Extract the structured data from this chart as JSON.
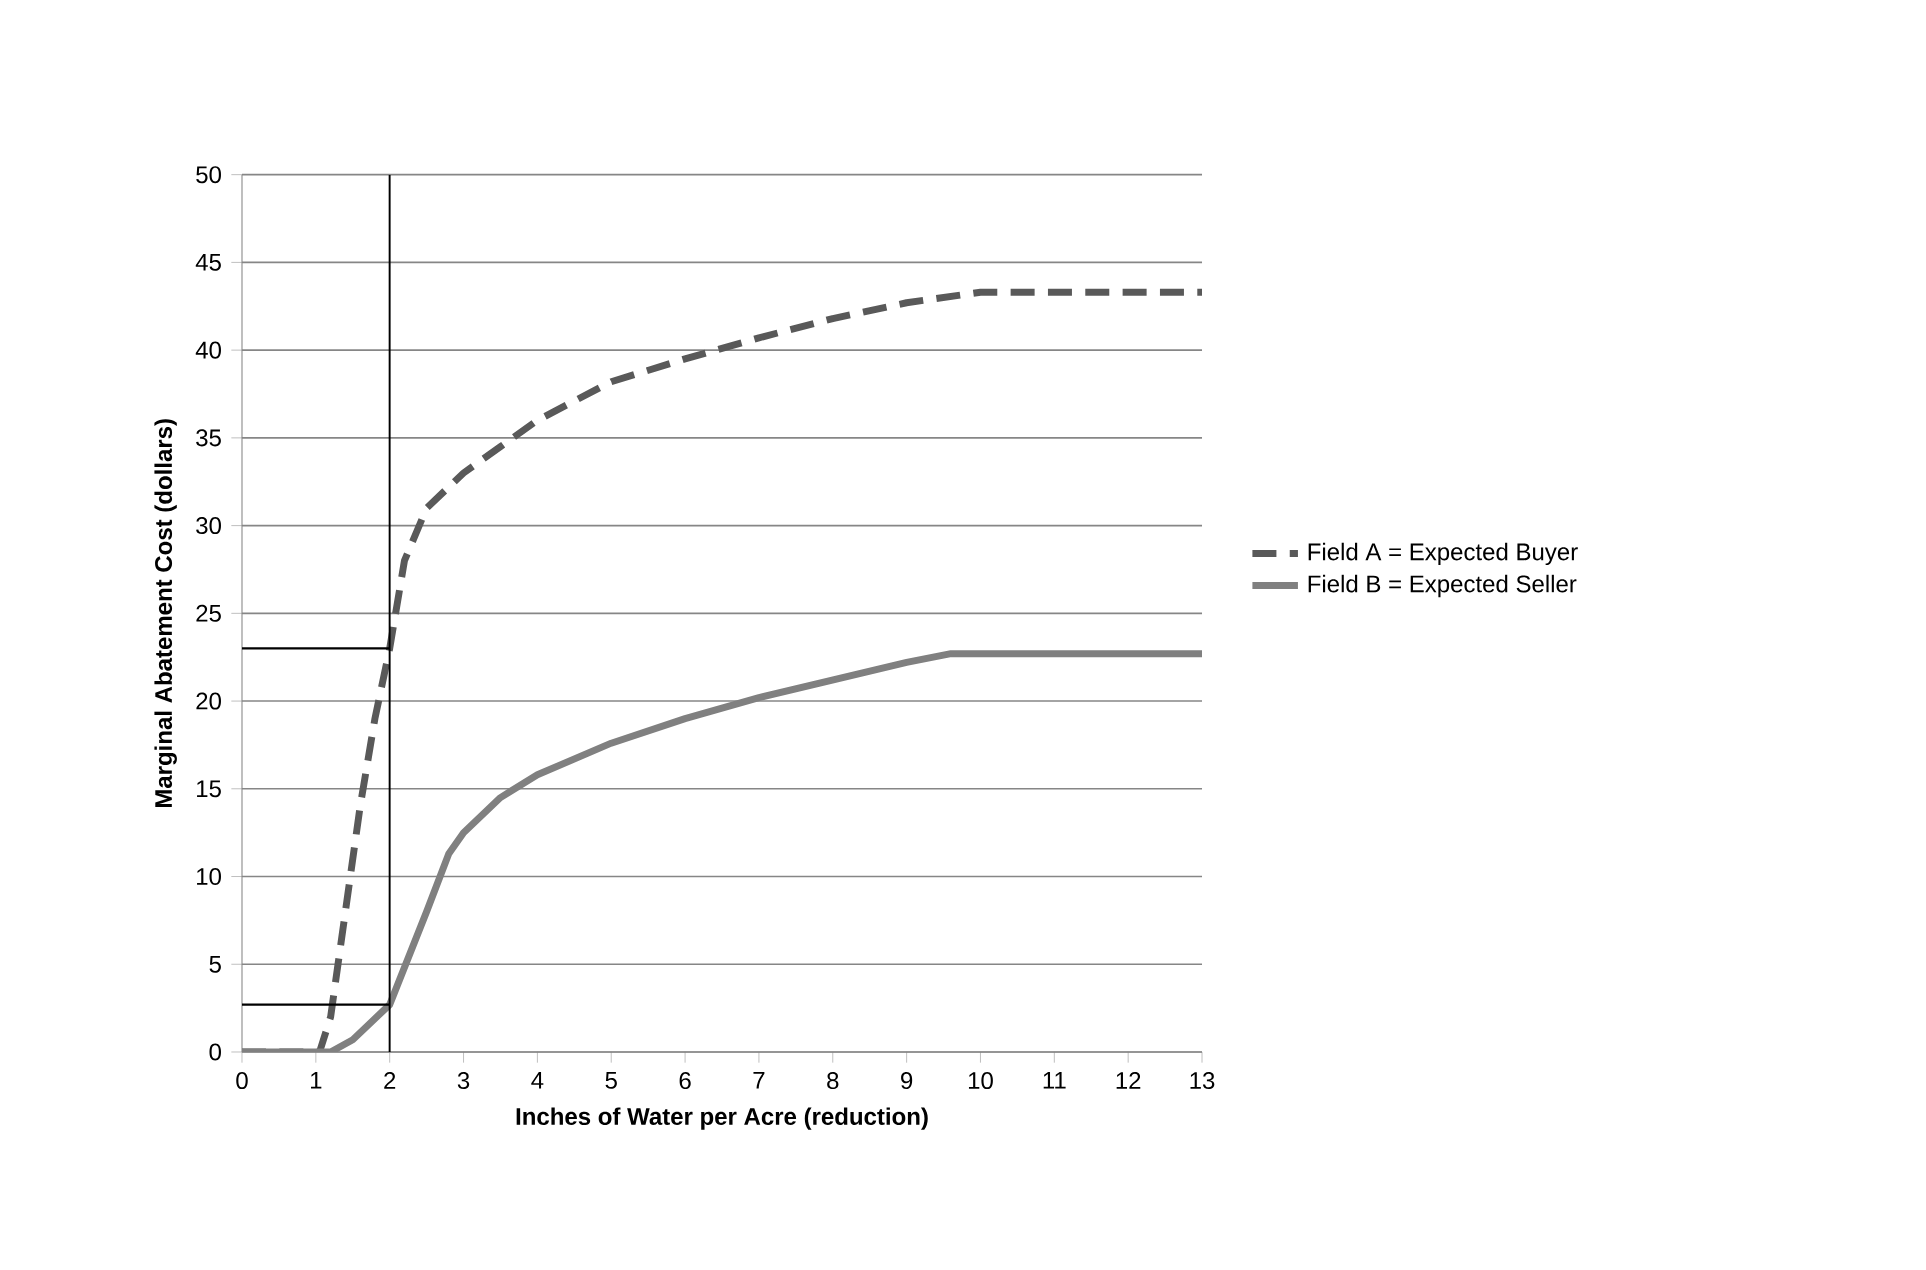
{
  "chart_data": {
    "type": "line",
    "xlabel": "Inches of Water per Acre (reduction)",
    "ylabel": "Marginal Abatement Cost (dollars)",
    "xlim": [
      0,
      13
    ],
    "xticks": [
      0,
      1,
      2,
      3,
      4,
      5,
      6,
      7,
      8,
      9,
      10,
      11,
      12,
      13
    ],
    "ylim": [
      0,
      50
    ],
    "yticks": [
      0,
      5,
      10,
      15,
      20,
      25,
      30,
      35,
      40,
      45,
      50
    ],
    "grid": "y",
    "legend": "right",
    "marker": "none",
    "series": [
      {
        "name": "Field A = Expected Buyer",
        "color": "#595959",
        "line_style": "dashed",
        "x": [
          0,
          1.05,
          1.2,
          1.4,
          1.6,
          1.8,
          2,
          2.2,
          2.5,
          3,
          3.5,
          4,
          5,
          6,
          7,
          8,
          9,
          10,
          11,
          13
        ],
        "values": [
          0,
          0,
          2,
          8,
          14,
          19,
          23,
          28,
          31,
          33,
          34.5,
          36,
          38.2,
          39.5,
          40.7,
          41.8,
          42.7,
          43.3,
          43.3,
          43.3
        ]
      },
      {
        "name": "Field B = Expected Seller",
        "color": "#808080",
        "line_style": "solid",
        "x": [
          0,
          1.2,
          1.5,
          2,
          2.5,
          2.8,
          3,
          3.5,
          4,
          5,
          6,
          7,
          8,
          9,
          9.6,
          13
        ],
        "values": [
          0,
          0,
          0.7,
          2.7,
          8,
          11.3,
          12.5,
          14.5,
          15.8,
          17.6,
          19,
          20.2,
          21.2,
          22.2,
          22.7,
          22.7
        ]
      },
      {
        "color": "#000000",
        "line_style": "solid",
        "x": [
          0,
          2
        ],
        "values": [
          23,
          23
        ]
      },
      {
        "color": "#000000",
        "line_style": "solid",
        "x": [
          0,
          2
        ],
        "values": [
          2.7,
          2.7
        ]
      }
    ],
    "ref_lines": [
      {
        "axis": "x",
        "value": 2,
        "color": "#000000"
      }
    ]
  }
}
